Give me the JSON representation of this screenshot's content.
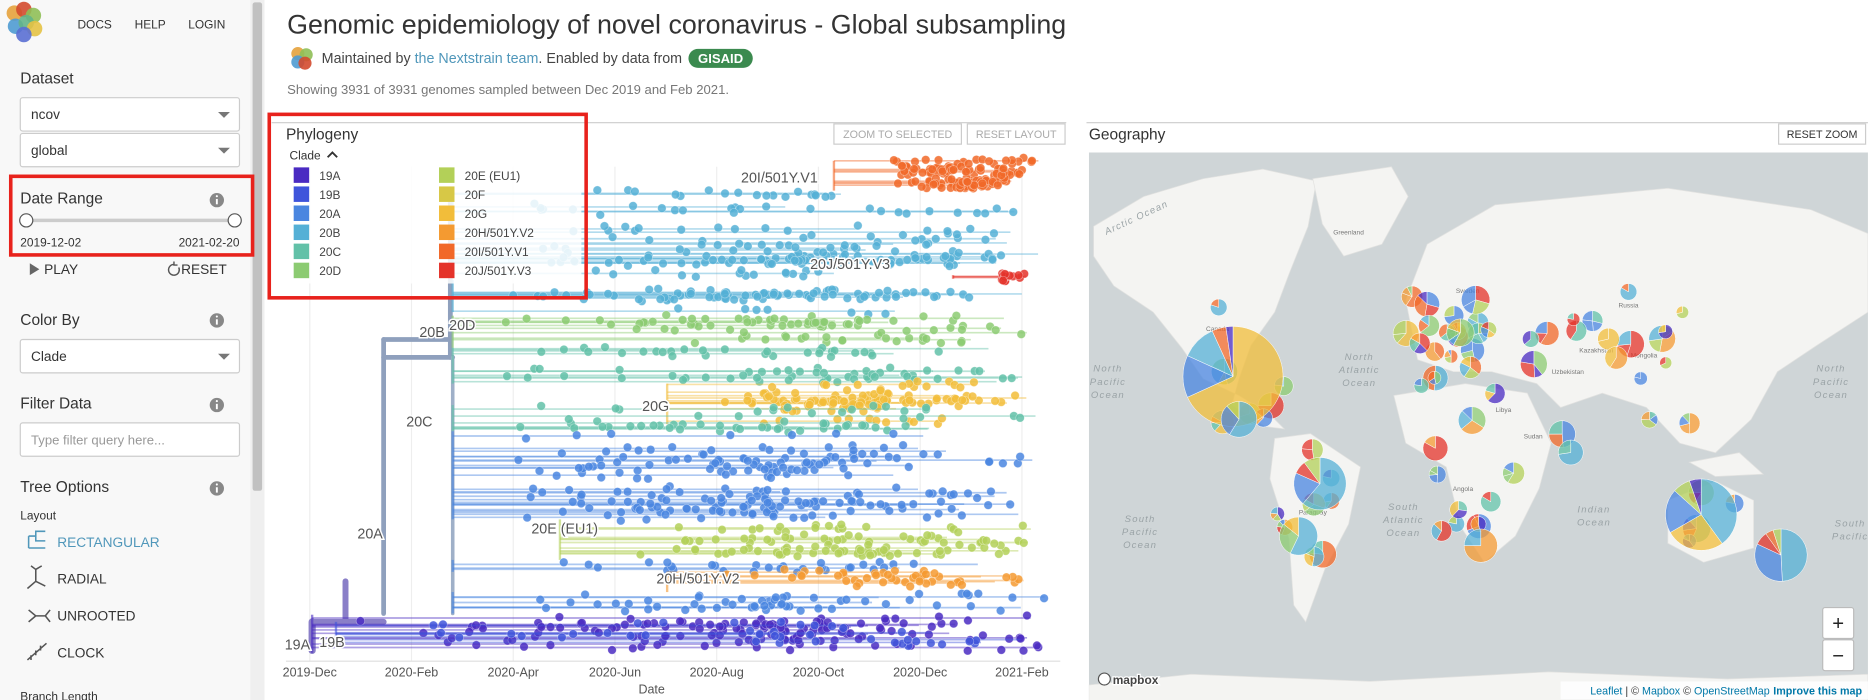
{
  "sidebar": {
    "nav": [
      "DOCS",
      "HELP",
      "LOGIN"
    ],
    "dataset": {
      "label": "Dataset",
      "selects": [
        "ncov",
        "global"
      ]
    },
    "date_range": {
      "label": "Date Range",
      "start": "2019-12-02",
      "end": "2021-02-20",
      "play": "PLAY",
      "reset": "RESET"
    },
    "color_by": {
      "label": "Color By",
      "value": "Clade"
    },
    "filter": {
      "label": "Filter Data",
      "placeholder": "Type filter query here..."
    },
    "tree_options": {
      "label": "Tree Options",
      "layout_label": "Layout",
      "layouts": [
        "RECTANGULAR",
        "RADIAL",
        "UNROOTED",
        "CLOCK"
      ],
      "branch_length": "Branch Length"
    }
  },
  "header": {
    "title": "Genomic epidemiology of novel coronavirus - Global subsampling",
    "maintained_prefix": "Maintained by ",
    "team": "the Nextstrain team",
    "enabled_text": ". Enabled by data from ",
    "gisaid": "GISAID",
    "summary": "Showing 3931 of 3931 genomes sampled between Dec 2019 and Feb 2021."
  },
  "phylogeny": {
    "title": "Phylogeny",
    "buttons": [
      "ZOOM TO SELECTED",
      "RESET LAYOUT"
    ],
    "legend": {
      "title": "Clade",
      "items": [
        {
          "name": "19A",
          "color": "#4a2bc2"
        },
        {
          "name": "19B",
          "color": "#3f55db"
        },
        {
          "name": "20A",
          "color": "#4a86e0"
        },
        {
          "name": "20B",
          "color": "#55b0d6"
        },
        {
          "name": "20C",
          "color": "#62c1a8"
        },
        {
          "name": "20D",
          "color": "#8ccb72"
        },
        {
          "name": "20E (EU1)",
          "color": "#b3d058"
        },
        {
          "name": "20F",
          "color": "#d7c846"
        },
        {
          "name": "20G",
          "color": "#f2bd3a"
        },
        {
          "name": "20H/501Y.V2",
          "color": "#f49a31"
        },
        {
          "name": "20I/501Y.V1",
          "color": "#f16828"
        },
        {
          "name": "20J/501Y.V3",
          "color": "#e4332a"
        }
      ]
    },
    "branch_labels": [
      "20I/501Y.V1",
      "20J/501Y.V3",
      "20B",
      "20D",
      "20C",
      "20G",
      "20A",
      "20E (EU1)",
      "20H/501Y.V2",
      "19A",
      "19B"
    ],
    "x_axis": {
      "ticks": [
        "2019-Dec",
        "2020-Feb",
        "2020-Apr",
        "2020-Jun",
        "2020-Aug",
        "2020-Oct",
        "2020-Dec",
        "2021-Feb"
      ],
      "label": "Date"
    }
  },
  "geography": {
    "title": "Geography",
    "button": "RESET ZOOM",
    "zoom_in": "+",
    "zoom_out": "−",
    "ocean_labels": [
      [
        "Arctic Ocean"
      ],
      [
        "North",
        "Pacific",
        "Ocean"
      ],
      [
        "North",
        "Atlantic",
        "Ocean"
      ],
      [
        "South",
        "Atlantic",
        "Ocean"
      ],
      [
        "South",
        "Pacific",
        "Ocean"
      ],
      [
        "Indian",
        "Ocean"
      ],
      [
        "North",
        "Pacific",
        "Ocean"
      ],
      [
        "South",
        "Pacific"
      ]
    ],
    "country_labels": [
      "Greenland",
      "Canada",
      "Russia",
      "Sweden",
      "Kazakhstan",
      "Mongolia",
      "Uzbekistan",
      "Libya",
      "Sudan",
      "Angola",
      "Paraguay"
    ],
    "logo": "mapbox",
    "attribution": [
      "Leaflet",
      " | © ",
      "Mapbox",
      " © ",
      "OpenStreetMap",
      "Improve this map"
    ]
  }
}
